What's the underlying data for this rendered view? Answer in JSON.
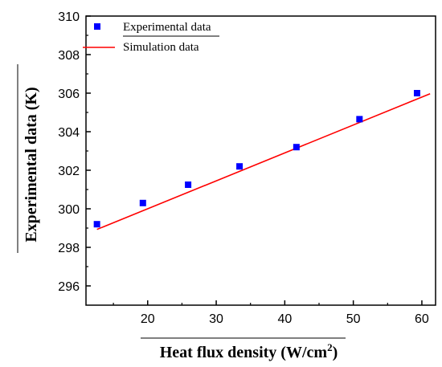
{
  "chart_data": {
    "type": "scatter",
    "xlabel": "Heat flux density (W/cm",
    "xlabel_sup": "2",
    "xlabel_suffix": ")",
    "ylabel": "Experimental data (K)",
    "xlim": [
      11,
      62
    ],
    "ylim": [
      295,
      310
    ],
    "xticks": [
      20,
      30,
      40,
      50,
      60
    ],
    "yticks": [
      296,
      298,
      300,
      302,
      304,
      306,
      308,
      310
    ],
    "grid": false,
    "legend_position": "top-left",
    "series": [
      {
        "name": "Experimental data",
        "kind": "scatter",
        "color": "#0000ff",
        "marker": "square",
        "x": [
          12.6,
          19.3,
          25.9,
          33.4,
          41.7,
          50.9,
          59.3
        ],
        "y": [
          299.2,
          300.3,
          301.25,
          302.2,
          303.2,
          304.65,
          306.0
        ]
      },
      {
        "name": "Simulation data",
        "kind": "line",
        "color": "#ff0000",
        "x": [
          12.6,
          61.2
        ],
        "y": [
          298.93,
          305.97
        ]
      }
    ]
  }
}
